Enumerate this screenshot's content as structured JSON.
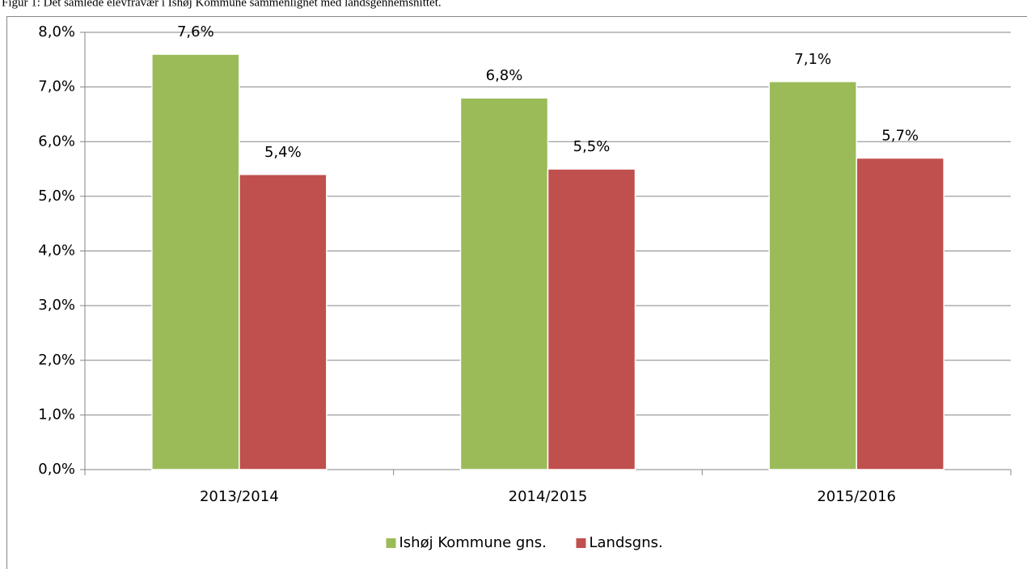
{
  "chart_data": {
    "type": "bar",
    "title": "Figur 1: Det samlede elevfravær i Ishøj Kommune sammenlignet med landsgennemsnittet.",
    "categories": [
      "2013/2014",
      "2014/2015",
      "2015/2016"
    ],
    "series": [
      {
        "name": "Ishøj Kommune gns.",
        "color": "#9bbb59",
        "values": [
          7.6,
          6.8,
          7.1
        ],
        "value_labels": [
          "7,6%",
          "6,8%",
          "7,1%"
        ]
      },
      {
        "name": "Landsgns.",
        "color": "#c0504d",
        "values": [
          5.4,
          5.5,
          5.7
        ],
        "value_labels": [
          "5,4%",
          "5,5%",
          "5,7%"
        ]
      }
    ],
    "ylim": [
      0,
      8
    ],
    "yticks": [
      {
        "value": 0,
        "label": "0,0%"
      },
      {
        "value": 1,
        "label": "1,0%"
      },
      {
        "value": 2,
        "label": "2,0%"
      },
      {
        "value": 3,
        "label": "3,0%"
      },
      {
        "value": 4,
        "label": "4,0%"
      },
      {
        "value": 5,
        "label": "5,0%"
      },
      {
        "value": 6,
        "label": "6,0%"
      },
      {
        "value": 7,
        "label": "7,0%"
      },
      {
        "value": 8,
        "label": "8,0%"
      }
    ],
    "grid": true,
    "legend": "bottom"
  }
}
